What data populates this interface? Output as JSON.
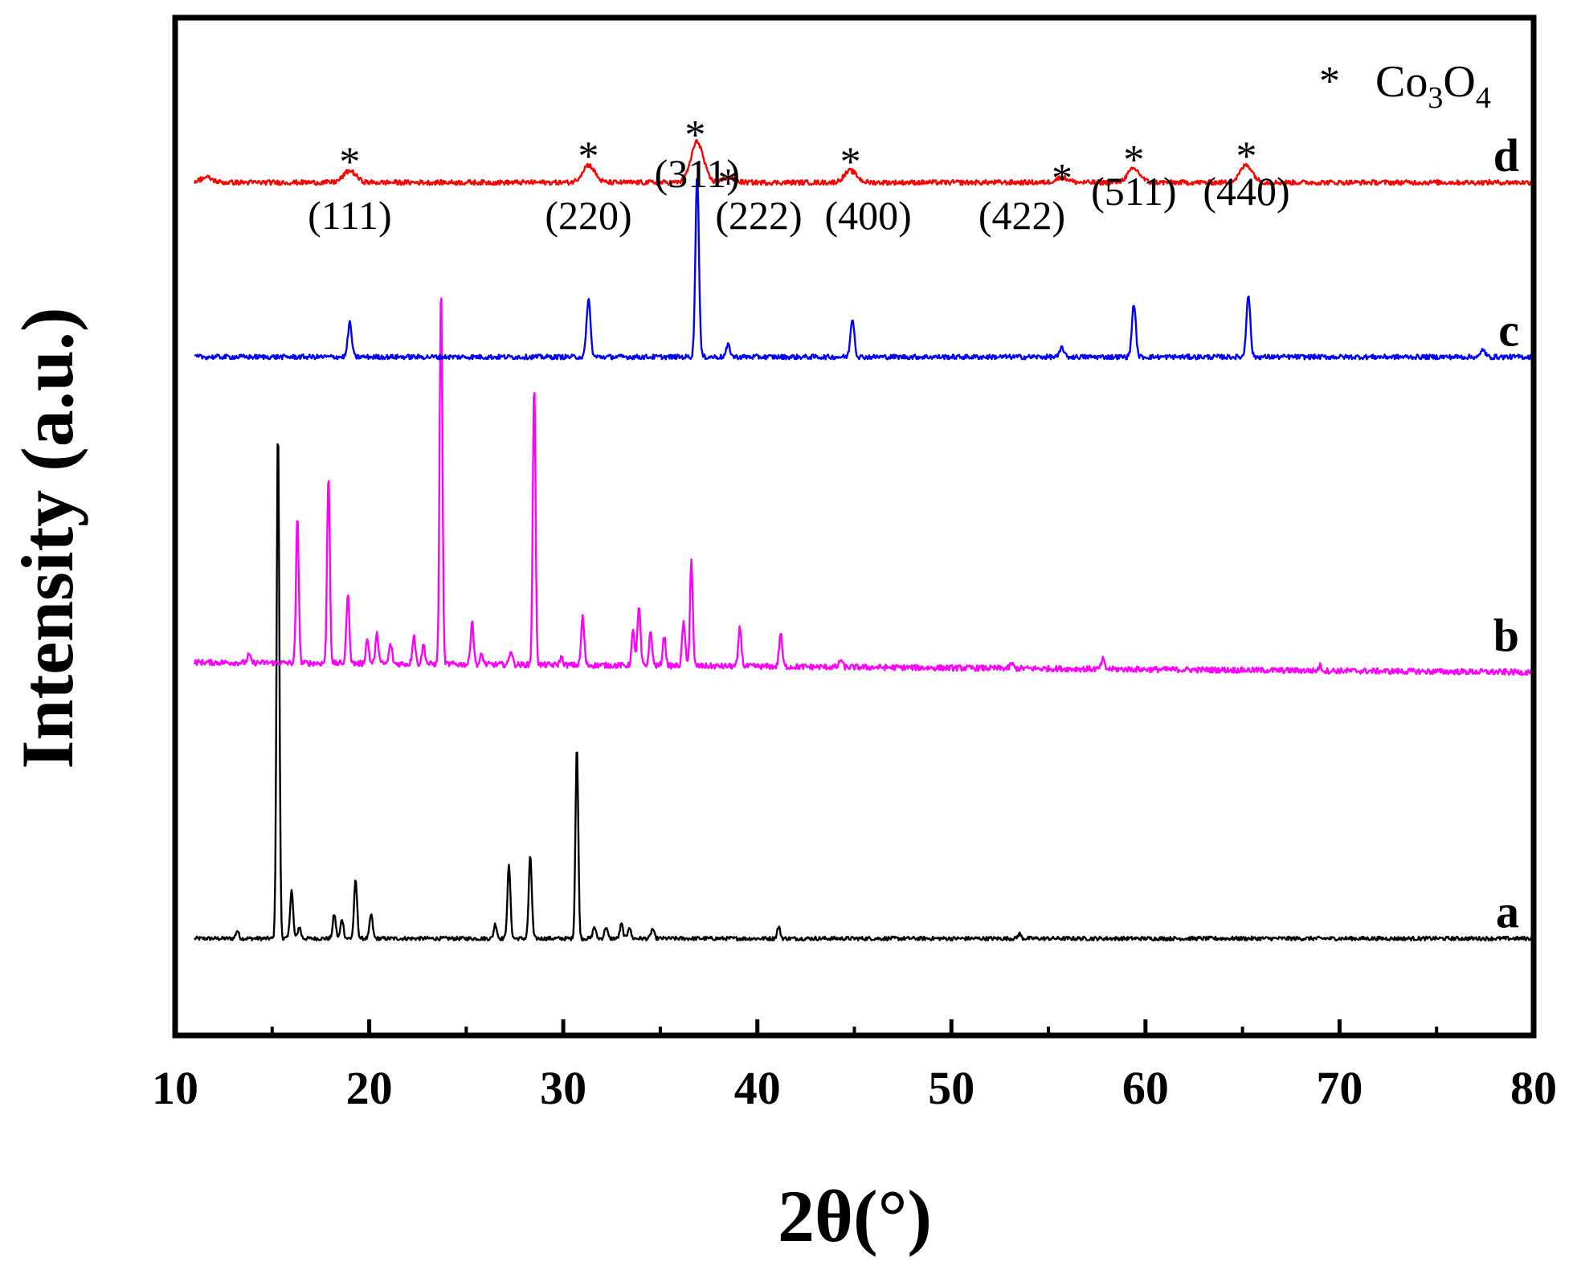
{
  "chart_data": {
    "type": "line",
    "title": "",
    "xlabel": "2θ(°)",
    "ylabel": "Intensity (a.u.)",
    "xlim": [
      10,
      80
    ],
    "x_ticks": [
      10,
      20,
      30,
      40,
      50,
      60,
      70,
      80
    ],
    "y_ticks_shown": false,
    "grid": false,
    "legend": {
      "position": "top-right",
      "marker": "*",
      "text_main": "Co",
      "sub1": "3",
      "text_mid": "O",
      "sub2": "4"
    },
    "series": [
      {
        "name": "a",
        "color": "#000000",
        "baseline": 1.0,
        "noise": 0.02,
        "peaks": [
          {
            "x": 13.2,
            "h": 0.08
          },
          {
            "x": 15.3,
            "h": 5.3
          },
          {
            "x": 16.0,
            "h": 0.5
          },
          {
            "x": 16.4,
            "h": 0.12
          },
          {
            "x": 18.2,
            "h": 0.25
          },
          {
            "x": 18.6,
            "h": 0.2
          },
          {
            "x": 19.3,
            "h": 0.6
          },
          {
            "x": 20.1,
            "h": 0.25
          },
          {
            "x": 26.5,
            "h": 0.15
          },
          {
            "x": 27.2,
            "h": 0.75
          },
          {
            "x": 28.3,
            "h": 0.85
          },
          {
            "x": 30.7,
            "h": 2.0
          },
          {
            "x": 31.6,
            "h": 0.12
          },
          {
            "x": 32.2,
            "h": 0.12
          },
          {
            "x": 33.0,
            "h": 0.15
          },
          {
            "x": 33.4,
            "h": 0.12
          },
          {
            "x": 34.6,
            "h": 0.1
          },
          {
            "x": 41.1,
            "h": 0.12
          },
          {
            "x": 53.5,
            "h": 0.05
          }
        ]
      },
      {
        "name": "b",
        "color": "#ff00ff",
        "baseline": 3.85,
        "noise": 0.03,
        "peaks": [
          {
            "x": 13.8,
            "h": 0.08
          },
          {
            "x": 16.3,
            "h": 1.5
          },
          {
            "x": 17.9,
            "h": 1.95
          },
          {
            "x": 18.9,
            "h": 0.7
          },
          {
            "x": 19.9,
            "h": 0.25
          },
          {
            "x": 20.4,
            "h": 0.3
          },
          {
            "x": 21.1,
            "h": 0.2
          },
          {
            "x": 22.3,
            "h": 0.3
          },
          {
            "x": 22.8,
            "h": 0.2
          },
          {
            "x": 23.7,
            "h": 3.9
          },
          {
            "x": 25.3,
            "h": 0.45
          },
          {
            "x": 25.8,
            "h": 0.1
          },
          {
            "x": 27.3,
            "h": 0.15
          },
          {
            "x": 28.5,
            "h": 2.9
          },
          {
            "x": 29.9,
            "h": 0.08
          },
          {
            "x": 31.0,
            "h": 0.5
          },
          {
            "x": 33.6,
            "h": 0.35
          },
          {
            "x": 33.9,
            "h": 0.6
          },
          {
            "x": 34.5,
            "h": 0.35
          },
          {
            "x": 35.2,
            "h": 0.3
          },
          {
            "x": 36.2,
            "h": 0.45
          },
          {
            "x": 36.6,
            "h": 1.1
          },
          {
            "x": 39.1,
            "h": 0.4
          },
          {
            "x": 41.2,
            "h": 0.35
          },
          {
            "x": 44.3,
            "h": 0.08
          },
          {
            "x": 53.1,
            "h": 0.05
          },
          {
            "x": 57.8,
            "h": 0.1
          },
          {
            "x": 69.0,
            "h": 0.05
          }
        ]
      },
      {
        "name": "c",
        "color": "#0000ff",
        "baseline": 7.0,
        "noise": 0.025,
        "peaks": [
          {
            "x": 19.0,
            "h": 0.35
          },
          {
            "x": 31.3,
            "h": 0.6
          },
          {
            "x": 36.9,
            "h": 1.9
          },
          {
            "x": 38.5,
            "h": 0.12
          },
          {
            "x": 44.9,
            "h": 0.4
          },
          {
            "x": 55.7,
            "h": 0.1
          },
          {
            "x": 59.4,
            "h": 0.55
          },
          {
            "x": 65.3,
            "h": 0.65
          },
          {
            "x": 77.4,
            "h": 0.08
          }
        ]
      },
      {
        "name": "d",
        "color": "#ff0000",
        "baseline": 8.8,
        "noise": 0.025,
        "peaks": [
          {
            "x": 11.6,
            "h": 0.05
          },
          {
            "x": 19.0,
            "h": 0.12
          },
          {
            "x": 31.3,
            "h": 0.18
          },
          {
            "x": 36.9,
            "h": 0.42
          },
          {
            "x": 38.5,
            "h": 0.05
          },
          {
            "x": 44.8,
            "h": 0.12
          },
          {
            "x": 55.7,
            "h": 0.05
          },
          {
            "x": 59.4,
            "h": 0.14
          },
          {
            "x": 65.2,
            "h": 0.18
          }
        ]
      }
    ],
    "annotations": [
      {
        "text": "(111)",
        "x": 19.0,
        "star_x": 19.0
      },
      {
        "text": "(220)",
        "x": 31.3,
        "star_x": 31.3
      },
      {
        "text": "(311)",
        "x": 36.9,
        "star_x": 36.8
      },
      {
        "text": "(222)",
        "x": 38.5,
        "star_x": 38.5
      },
      {
        "text": "(400)",
        "x": 44.8,
        "star_x": 44.8
      },
      {
        "text": "(422)",
        "x": 55.7,
        "star_x": 55.7
      },
      {
        "text": "(511)",
        "x": 59.4,
        "star_x": 59.4
      },
      {
        "text": "(440)",
        "x": 65.2,
        "star_x": 65.2
      }
    ]
  }
}
